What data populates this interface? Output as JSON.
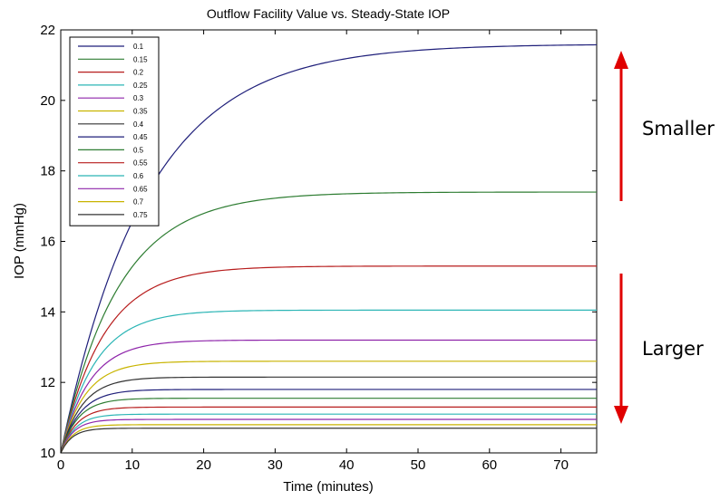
{
  "chart_data": {
    "type": "line",
    "title": "Outflow Facility Value vs. Steady-State IOP",
    "xlabel": "Time (minutes)",
    "ylabel": "IOP (mmHg)",
    "xlim": [
      0,
      75
    ],
    "ylim": [
      10,
      22
    ],
    "xticks": [
      0,
      10,
      20,
      30,
      40,
      50,
      60,
      70
    ],
    "yticks": [
      10,
      12,
      14,
      16,
      18,
      20,
      22
    ],
    "grid": false,
    "legend_position": "top-left",
    "series": [
      {
        "name": "0.1",
        "color": "#1f1f7a",
        "steady_state": 21.6,
        "tau": 12.0
      },
      {
        "name": "0.15",
        "color": "#2e7d32",
        "steady_state": 17.4,
        "tau": 8.0
      },
      {
        "name": "0.2",
        "color": "#b71c1c",
        "steady_state": 15.3,
        "tau": 6.0
      },
      {
        "name": "0.25",
        "color": "#2bb5b5",
        "steady_state": 14.05,
        "tau": 4.8
      },
      {
        "name": "0.3",
        "color": "#8e24aa",
        "steady_state": 13.2,
        "tau": 4.0
      },
      {
        "name": "0.35",
        "color": "#c8b400",
        "steady_state": 12.6,
        "tau": 3.4
      },
      {
        "name": "0.4",
        "color": "#333333",
        "steady_state": 12.15,
        "tau": 3.0
      },
      {
        "name": "0.45",
        "color": "#1f1f7a",
        "steady_state": 11.8,
        "tau": 2.7
      },
      {
        "name": "0.5",
        "color": "#2e7d32",
        "steady_state": 11.55,
        "tau": 2.4
      },
      {
        "name": "0.55",
        "color": "#b71c1c",
        "steady_state": 11.3,
        "tau": 2.2
      },
      {
        "name": "0.6",
        "color": "#2bb5b5",
        "steady_state": 11.1,
        "tau": 2.0
      },
      {
        "name": "0.65",
        "color": "#8e24aa",
        "steady_state": 10.95,
        "tau": 1.8
      },
      {
        "name": "0.7",
        "color": "#c8b400",
        "steady_state": 10.8,
        "tau": 1.7
      },
      {
        "name": "0.75",
        "color": "#333333",
        "steady_state": 10.7,
        "tau": 1.6
      }
    ],
    "start_value": 10,
    "annotations": [
      {
        "text": "Smaller",
        "arrow": "up",
        "color": "#e00000"
      },
      {
        "text": "Larger",
        "arrow": "down",
        "color": "#e00000"
      }
    ]
  }
}
